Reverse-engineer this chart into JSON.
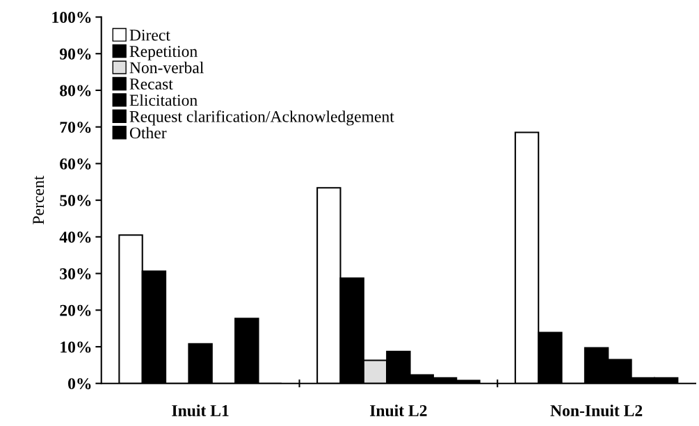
{
  "chart_data": {
    "type": "bar",
    "ylabel": "Percent",
    "categories": [
      "Inuit L1",
      "Inuit L2",
      "Non-Inuit L2"
    ],
    "series": [
      {
        "name": "Direct",
        "color": "#ffffff",
        "values": [
          40.5,
          53.4,
          68.5
        ]
      },
      {
        "name": "Repetition",
        "color": "#000000",
        "values": [
          30.6,
          28.7,
          13.9
        ]
      },
      {
        "name": "Non-verbal",
        "color": "#e0e0e0",
        "values": [
          0,
          6.3,
          0
        ]
      },
      {
        "name": "Recast",
        "color": "#000000",
        "values": [
          10.8,
          8.7,
          9.7
        ]
      },
      {
        "name": "Elicitation",
        "color": "#000000",
        "values": [
          0,
          2.3,
          6.5
        ]
      },
      {
        "name": "Request clarification/Acknowledgement",
        "color": "#000000",
        "values": [
          17.7,
          1.5,
          1.5
        ]
      },
      {
        "name": "Other",
        "color": "#000000",
        "values": [
          0,
          0.8,
          1.5
        ]
      }
    ],
    "ylim": [
      0,
      100
    ],
    "yticks": [
      {
        "value": 0,
        "label": "0%"
      },
      {
        "value": 10,
        "label": "10%"
      },
      {
        "value": 20,
        "label": "20%"
      },
      {
        "value": 30,
        "label": "30%"
      },
      {
        "value": 40,
        "label": "40%"
      },
      {
        "value": 50,
        "label": "50%"
      },
      {
        "value": 60,
        "label": "60%"
      },
      {
        "value": 70,
        "label": "70%"
      },
      {
        "value": 80,
        "label": "80%"
      },
      {
        "value": 90,
        "label": "90%"
      },
      {
        "value": 100,
        "label": "100%"
      }
    ],
    "grid": false,
    "legend": "top left"
  }
}
